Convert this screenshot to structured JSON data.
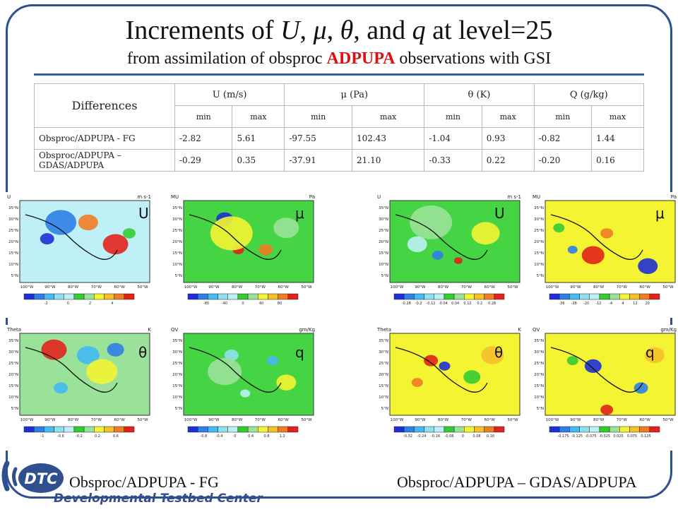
{
  "title": {
    "prefix": "Increments of ",
    "var1": "U",
    "sep1": ", ",
    "var2": "μ",
    "sep2": ", ",
    "var3": "θ",
    "sep3": ", and ",
    "var4": "q",
    "suffix": " at level=25"
  },
  "subtitle": {
    "prefix": "from assimilation of obsproc ",
    "highlight": "ADPUPA",
    "suffix": " observations with GSI"
  },
  "table": {
    "corner": "Differences",
    "columns": [
      "U (m/s)",
      "μ (Pa)",
      "θ (K)",
      "Q (g/kg)"
    ],
    "subcolumns": [
      "min",
      "max",
      "min",
      "max",
      "min",
      "max",
      "min",
      "max"
    ],
    "rows": [
      {
        "label": "Obsproc/ADPUPA - FG",
        "values": [
          "-2.82",
          "5.61",
          "-97.55",
          "102.43",
          "-1.04",
          "0.93",
          "-0.82",
          "1.44"
        ]
      },
      {
        "label": "Obsproc/ADPUPA – GDAS/ADPUPA",
        "values": [
          "-0.29",
          "0.35",
          "-37.91",
          "21.10",
          "-0.33",
          "0.22",
          "-0.20",
          "0.16"
        ]
      }
    ]
  },
  "maps": {
    "latitudes": [
      "35°N",
      "30°N",
      "25°N",
      "20°N",
      "15°N",
      "10°N",
      "5°N"
    ],
    "longitudes": [
      "100°W",
      "90°W",
      "80°W",
      "70°W",
      "60°W",
      "50°W"
    ],
    "panels": [
      {
        "letter": "U",
        "header_left": "U",
        "header_right": "m s-1",
        "base": "#bff0f6",
        "colorbar": [
          "-2",
          "0",
          "2",
          "4"
        ]
      },
      {
        "letter": "μ",
        "header_left": "MU",
        "header_right": "Pa",
        "base": "#44d444",
        "colorbar": [
          "-80",
          "-40",
          "0",
          "40",
          "80"
        ]
      },
      {
        "letter": "U",
        "header_left": "U",
        "header_right": "m s-1",
        "base": "#44d444",
        "colorbar": [
          "-0.28",
          "-0.2",
          "-0.12",
          "-0.04",
          "0.04",
          "0.12",
          "0.2",
          "0.28"
        ]
      },
      {
        "letter": "μ",
        "header_left": "MU",
        "header_right": "Pa",
        "base": "#f4f433",
        "colorbar": [
          "-36",
          "-28",
          "-20",
          "-12",
          "-4",
          "4",
          "12",
          "20"
        ]
      },
      {
        "letter": "θ",
        "header_left": "Theta",
        "header_right": "K",
        "base": "#9ae29a",
        "colorbar": [
          "-1",
          "-0.6",
          "-0.2",
          "0.2",
          "0.6"
        ]
      },
      {
        "letter": "q",
        "header_left": "QV",
        "header_right": "gm/Kg",
        "base": "#44d444",
        "colorbar": [
          "-0.8",
          "-0.4",
          "0",
          "0.4",
          "0.8",
          "1.2"
        ]
      },
      {
        "letter": "θ",
        "header_left": "Theta",
        "header_right": "K",
        "base": "#f4f433",
        "colorbar": [
          "-0.32",
          "-0.24",
          "-0.16",
          "-0.08",
          "0",
          "0.08",
          "0.16"
        ]
      },
      {
        "letter": "q",
        "header_left": "QV",
        "header_right": "gm/Kg",
        "base": "#f4f433",
        "colorbar": [
          "-0.175",
          "-0.125",
          "-0.075",
          "-0.025",
          "0.025",
          "0.075",
          "0.125"
        ]
      }
    ]
  },
  "footer": {
    "left": "Obsproc/ADPUPA - FG",
    "right": "Obsproc/ADPUPA – GDAS/ADPUPA"
  },
  "logo": {
    "mark": "DTC",
    "name": "Developmental Testbed Center",
    "color": "#2f4f8f"
  },
  "palette": [
    "#1f2fd6",
    "#2f7fe8",
    "#45b9f2",
    "#8fe0f0",
    "#bff0f6",
    "#33cc33",
    "#9ae29a",
    "#f4f433",
    "#f6c02a",
    "#f07d23",
    "#e2231b"
  ]
}
